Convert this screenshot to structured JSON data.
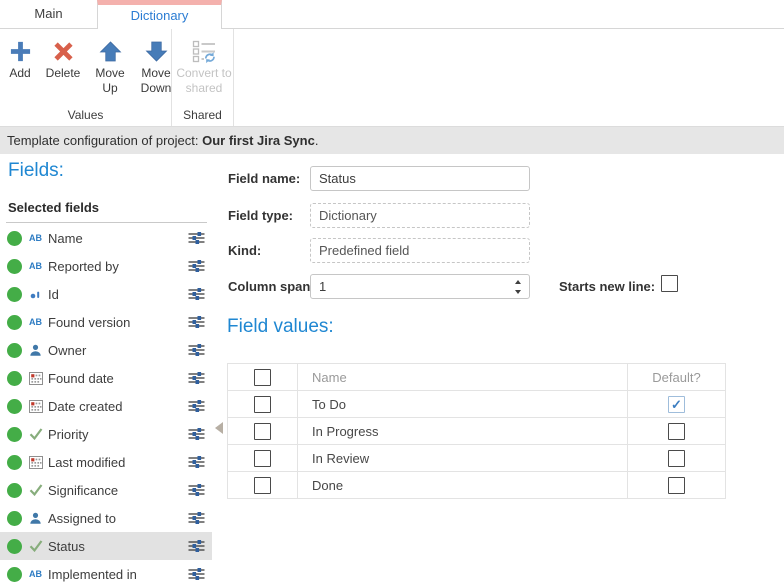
{
  "tabs": [
    {
      "label": "Main",
      "active": false
    },
    {
      "label": "Dictionary",
      "active": true
    }
  ],
  "ribbon": {
    "buttons": [
      {
        "label": "Add",
        "icon": "plus-icon"
      },
      {
        "label": "Delete",
        "icon": "delete-x-icon"
      },
      {
        "label": "Move Up",
        "icon": "arrow-up-icon"
      },
      {
        "label": "Move Down",
        "icon": "arrow-down-icon"
      },
      {
        "label": "Convert to shared",
        "icon": "convert-to-shared-icon",
        "disabled": true
      }
    ],
    "groups": [
      {
        "label": "Values"
      },
      {
        "label": "Shared"
      }
    ]
  },
  "info_bar": {
    "prefix": "Template configuration of project: ",
    "project": "Our first Jira Sync",
    "suffix": "."
  },
  "fields_panel": {
    "title": "Fields:",
    "list_header": "Selected fields",
    "ab_icon_text": "AB",
    "items": [
      {
        "label": "Name",
        "type": "text"
      },
      {
        "label": "Reported by",
        "type": "text"
      },
      {
        "label": "Id",
        "type": "id"
      },
      {
        "label": "Found version",
        "type": "text"
      },
      {
        "label": "Owner",
        "type": "person"
      },
      {
        "label": "Found date",
        "type": "date"
      },
      {
        "label": "Date created",
        "type": "date"
      },
      {
        "label": "Priority",
        "type": "dictionary"
      },
      {
        "label": "Last modified",
        "type": "date"
      },
      {
        "label": "Significance",
        "type": "dictionary"
      },
      {
        "label": "Assigned to",
        "type": "person"
      },
      {
        "label": "Status",
        "type": "dictionary",
        "selected": true
      },
      {
        "label": "Implemented in",
        "type": "text",
        "partial": true
      }
    ]
  },
  "form": {
    "field_name": {
      "label": "Field name:",
      "value": "Status"
    },
    "field_type": {
      "label": "Field type:",
      "value": "Dictionary",
      "disabled": true
    },
    "kind": {
      "label": "Kind:",
      "value": "Predefined field",
      "disabled": true
    },
    "column_span": {
      "label": "Column span:",
      "value": "1"
    },
    "starts_new_line": {
      "label": "Starts new line:",
      "checked": false
    }
  },
  "field_values": {
    "title": "Field values:",
    "columns": [
      "",
      "Name",
      "Default?"
    ],
    "rows": [
      {
        "name": "To Do",
        "row_checked": false,
        "default": true
      },
      {
        "name": "In Progress",
        "row_checked": false,
        "default": false
      },
      {
        "name": "In Review",
        "row_checked": false,
        "default": false
      },
      {
        "name": "Done",
        "row_checked": false,
        "default": false
      }
    ]
  },
  "colors": {
    "heading_blue": "#1f87d2",
    "tab_accent_salmon": "#f4b1ad",
    "tab_text_blue": "#2b7cd3",
    "field_status_green": "#44ad47",
    "ribbon_icon_blue": "#4a7cb8",
    "ribbon_icon_red": "#d8604b",
    "selected_row_gray": "#e2e2e2",
    "info_bar_gray": "#e6e6e6",
    "check_blue": "#3c7ec1",
    "muted_check_green": "#87ad7c"
  }
}
